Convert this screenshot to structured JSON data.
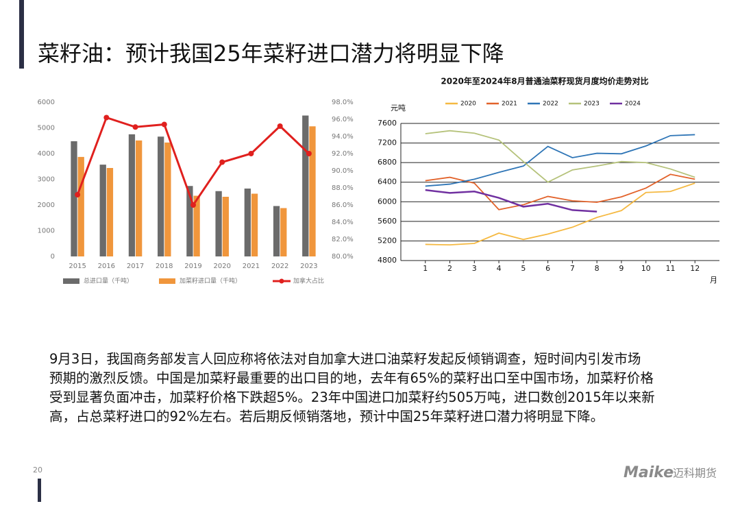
{
  "slide": {
    "title": "菜籽油：预计我国25年菜籽进口潜力将明显下降",
    "paragraph": [
      "9月3日，我国商务部发言人回应称将依法对自加拿大进口油菜籽发起反倾销调查，短时间内引发市场",
      "预期的激烈反馈。中国是加菜籽最重要的出口目的地，去年有65%的菜籽出口至中国市场，加菜籽价格",
      "受到显著负面冲击，加菜籽价格下跌超5%。23年中国进口加菜籽约505万吨，进口数创2015年以来新",
      "高，占总菜籽进口的92%左右。若后期反倾销落地，预计中国25年菜籽进口潜力将明显下降。"
    ],
    "page_number": "20",
    "logo": "Maike",
    "logo_cn": "迈科期货"
  },
  "chart_data": [
    {
      "type": "combo",
      "legend": "bottom",
      "grid": false,
      "categories": [
        "2015",
        "2016",
        "2017",
        "2018",
        "2019",
        "2020",
        "2021",
        "2022",
        "2023"
      ],
      "ylim": [
        0,
        6000
      ],
      "yticks": [
        0,
        1000,
        2000,
        3000,
        4000,
        5000,
        6000
      ],
      "y2lim": [
        80,
        98
      ],
      "y2ticks": [
        {
          "value": 80,
          "label": "80.0%"
        },
        {
          "value": 82,
          "label": "82.0%"
        },
        {
          "value": 84,
          "label": "84.0%"
        },
        {
          "value": 86,
          "label": "86.0%"
        },
        {
          "value": 88,
          "label": "88.0%"
        },
        {
          "value": 90,
          "label": "90.0%"
        },
        {
          "value": 92,
          "label": "92.0%"
        },
        {
          "value": 94,
          "label": "94.0%"
        },
        {
          "value": 96,
          "label": "96.0%"
        },
        {
          "value": 98,
          "label": "98.0%"
        }
      ],
      "series": [
        {
          "name": "总进口量（千吨）",
          "type": "bar",
          "color": "#6b6b6b",
          "values": [
            4480,
            3570,
            4750,
            4660,
            2740,
            2540,
            2640,
            1960,
            5480
          ]
        },
        {
          "name": "加菜籽进口量（千吨）",
          "type": "bar",
          "color": "#f0963c",
          "values": [
            3870,
            3440,
            4510,
            4430,
            2360,
            2320,
            2440,
            1880,
            5060
          ]
        },
        {
          "name": "加拿大占比",
          "type": "line",
          "axis": "y2",
          "color": "#e0201e",
          "values": [
            87.2,
            96.2,
            95.1,
            95.4,
            86.0,
            91.0,
            92.0,
            95.2,
            92.0
          ]
        }
      ]
    },
    {
      "type": "line",
      "legend": "top",
      "grid": true,
      "title": "2020年至2024年8月普通油菜籽现货月度均价走势对比",
      "y_label": "元吨",
      "x_label": "月",
      "x": [
        1,
        2,
        3,
        4,
        5,
        6,
        7,
        8,
        9,
        10,
        11,
        12
      ],
      "xlim": [
        0,
        13
      ],
      "xticks": [
        1,
        2,
        3,
        4,
        5,
        6,
        7,
        8,
        9,
        10,
        11,
        12
      ],
      "ylim": [
        4800,
        7600
      ],
      "yticks": [
        4800,
        5200,
        5600,
        6000,
        6400,
        6800,
        7200,
        7600
      ],
      "series": [
        {
          "name": "2020",
          "color": "#f5b942",
          "values": [
            5130,
            5120,
            5150,
            5360,
            5230,
            5340,
            5480,
            5680,
            5820,
            6190,
            6210,
            6380
          ]
        },
        {
          "name": "2021",
          "color": "#e2622a",
          "values": [
            6430,
            6500,
            6380,
            5840,
            5940,
            6110,
            6020,
            5990,
            6100,
            6280,
            6560,
            6460
          ]
        },
        {
          "name": "2022",
          "color": "#2e75b6",
          "values": [
            6320,
            6360,
            6460,
            6600,
            6730,
            7130,
            6900,
            6990,
            6980,
            7140,
            7350,
            7370
          ]
        },
        {
          "name": "2023",
          "color": "#b5c27a",
          "values": [
            7390,
            7450,
            7400,
            7260,
            6820,
            6400,
            6650,
            6730,
            6820,
            6800,
            6670,
            6500
          ]
        },
        {
          "name": "2024",
          "color": "#7030a0",
          "values": [
            6240,
            6180,
            6210,
            6080,
            5900,
            5960,
            5830,
            5800,
            null,
            null,
            null,
            null
          ]
        }
      ]
    }
  ]
}
